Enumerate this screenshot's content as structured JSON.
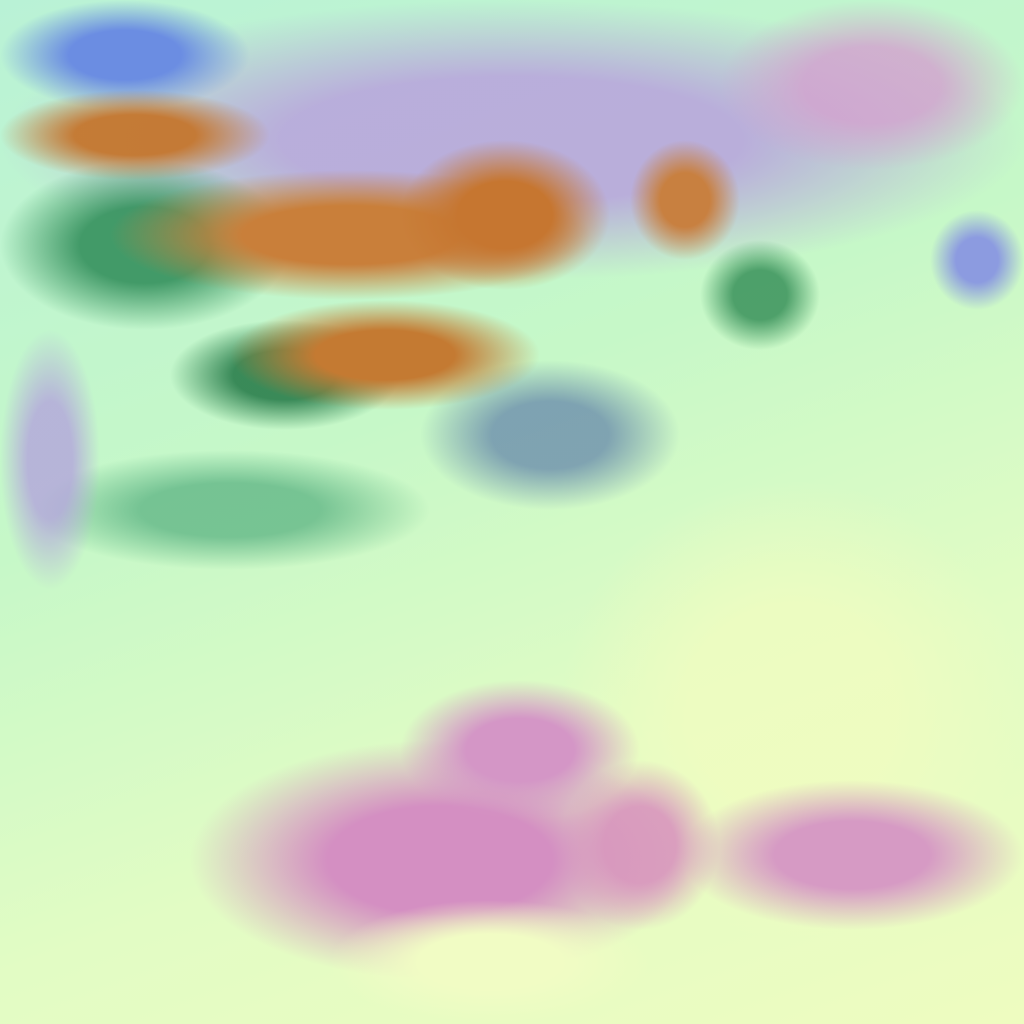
{
  "image": {
    "kind": "false-color satellite imagery",
    "colors": {
      "clear_background": "#c8f7c8",
      "high_cloud_lavender": "#b8a6dc",
      "upper_left_blue": "#6b8de2",
      "deep_convection_orange": "#c57a36",
      "cloud_edge_green": "#2c8a56",
      "land_mauve": "#d48fc2",
      "pale_yellow": "#f0fcc0"
    }
  }
}
